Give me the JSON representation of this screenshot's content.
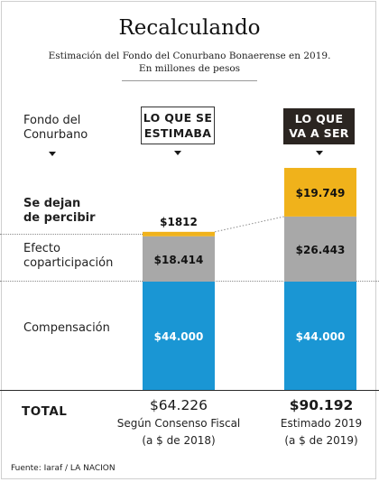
{
  "title": "Recalculando",
  "subtitle_line1": "Estimación del Fondo del Conurbano Bonaerense en 2019.",
  "subtitle_line2": "En millones de pesos",
  "left_labels": {
    "fondo": [
      "Fondo del",
      "Conurbano"
    ],
    "se_dejan": [
      "Se dejan",
      "de percibir"
    ],
    "efecto": [
      "Efecto",
      "coparticipación"
    ],
    "compensacion": "Compensación",
    "total": "TOTAL"
  },
  "column_headers": {
    "estimaba": [
      "LO QUE SE",
      "ESTIMABA"
    ],
    "va_a_ser": [
      "LO QUE",
      "VA A SER"
    ]
  },
  "source": "Fuente: Iaraf / LA NACION",
  "colors": {
    "compensacion": "#1a96d4",
    "efecto": "#a8a8a8",
    "se_dejan": "#f0b21b",
    "header_dark": "#2b2521"
  },
  "chart_data": {
    "type": "bar",
    "stacked": true,
    "categories": [
      "Lo que se estimaba",
      "Lo que va a ser"
    ],
    "series": [
      {
        "name": "Compensación",
        "values": [
          44000,
          44000
        ],
        "labels": [
          "$44.000",
          "$44.000"
        ]
      },
      {
        "name": "Efecto coparticipación",
        "values": [
          18414,
          26443
        ],
        "labels": [
          "$18.414",
          "$26.443"
        ]
      },
      {
        "name": "Se dejan de percibir",
        "values": [
          1812,
          19749
        ],
        "labels": [
          "$1812",
          "$19.749"
        ]
      }
    ],
    "totals": [
      {
        "value": "$64.226",
        "line1": "Según Consenso Fiscal",
        "line2": "(a $ de 2018)"
      },
      {
        "value": "$90.192",
        "line1": "Estimado 2019",
        "line2": "(a $ de 2019)"
      }
    ],
    "units": "En millones de pesos"
  }
}
